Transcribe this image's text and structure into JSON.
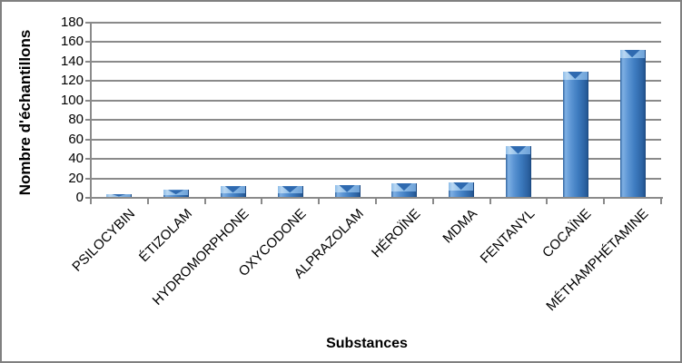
{
  "chart_data": {
    "type": "bar",
    "title": "",
    "categories": [
      "PSILOCYBIN",
      "ÉTIZOLAM",
      "HYDROMORPHONE",
      "OXYCODONE",
      "ALPRAZOLAM",
      "HÉROÏNE",
      "MDMA",
      "FENTANYL",
      "COCAÏNE",
      "MÉTHAMPHÉTAMINE"
    ],
    "values": [
      4,
      8,
      12,
      12,
      13,
      15,
      16,
      53,
      130,
      152
    ],
    "xlabel": "Substances",
    "ylabel": "Nombre d'échantillons",
    "ylim": [
      0,
      180
    ],
    "ytick_step": 20,
    "grid": true,
    "legend_position": "none",
    "colors": {
      "bar_body_gradient": [
        "#30649f",
        "#7fb0e4",
        "#5c95d4",
        "#3e7cc0",
        "#2c62a2",
        "#235590"
      ],
      "bar_cap_light": "#8cbce8",
      "bar_cap_dark": "#2f6ab0",
      "gridline": "#8a8a8a",
      "axis": "#8a8a8a",
      "text": "#000000",
      "frame_border": "#808080",
      "background": "#ffffff"
    }
  }
}
